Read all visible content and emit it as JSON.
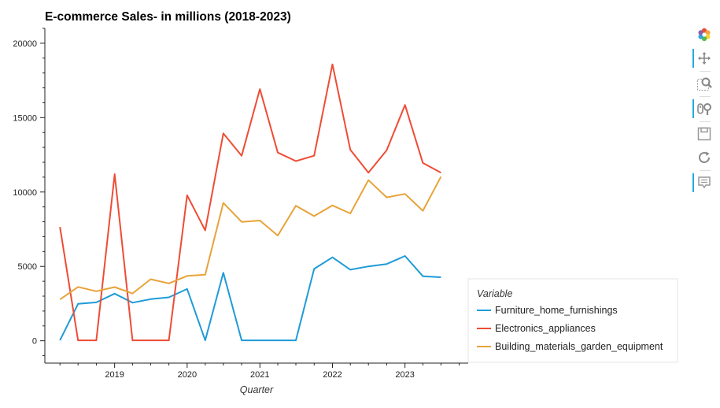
{
  "chart_data": {
    "type": "line",
    "title": "E-commerce Sales- in millions (2018-2023)",
    "xlabel": "Quarter",
    "ylabel": "",
    "x_ticks": [
      "2019",
      "2020",
      "2021",
      "2022",
      "2023"
    ],
    "y_ticks": [
      "0",
      "5000",
      "10000",
      "15000",
      "20000"
    ],
    "ylim": [
      -1500,
      21000
    ],
    "xlim": [
      "2018-01-15",
      "2023-11-15"
    ],
    "grid": false,
    "legend_title": "Variable",
    "legend_position": "right",
    "x": [
      "2018-04-01",
      "2018-07-01",
      "2018-10-01",
      "2019-01-01",
      "2019-04-01",
      "2019-07-01",
      "2019-10-01",
      "2020-01-01",
      "2020-04-01",
      "2020-07-01",
      "2020-10-01",
      "2021-01-01",
      "2021-04-01",
      "2021-07-01",
      "2021-10-01",
      "2022-01-01",
      "2022-04-01",
      "2022-07-01",
      "2022-10-01",
      "2023-01-01",
      "2023-04-01",
      "2023-07-01"
    ],
    "series": [
      {
        "name": "Furniture_home_furnishings",
        "color": "#1f9bd7",
        "values": [
          30,
          2480,
          2580,
          3170,
          2560,
          2800,
          2920,
          3480,
          30,
          4570,
          30,
          30,
          30,
          30,
          4830,
          5610,
          4780,
          5000,
          5160,
          5700,
          4340,
          4270
        ]
      },
      {
        "name": "Electronics_appliances",
        "color": "#ee4c35",
        "values": [
          7650,
          30,
          30,
          11200,
          30,
          30,
          30,
          9780,
          7420,
          13940,
          12440,
          16920,
          12650,
          12080,
          12440,
          18580,
          12840,
          11300,
          12810,
          15850,
          11950,
          11300
        ]
      },
      {
        "name": "Building_materials_garden_equipment",
        "color": "#e8a33a",
        "values": [
          2780,
          3620,
          3330,
          3610,
          3180,
          4140,
          3860,
          4360,
          4440,
          9270,
          7990,
          8080,
          7070,
          9080,
          8380,
          9100,
          8560,
          10800,
          9640,
          9870,
          8740,
          11030
        ]
      }
    ]
  },
  "toolbar": {
    "tools": [
      {
        "name": "bokeh-logo-icon",
        "active": false
      },
      {
        "name": "pan-tool-icon",
        "active": true
      },
      {
        "name": "box-zoom-tool-icon",
        "active": false
      },
      {
        "name": "wheel-zoom-tool-icon",
        "active": true
      },
      {
        "name": "save-tool-icon",
        "active": false
      },
      {
        "name": "reset-tool-icon",
        "active": false
      },
      {
        "name": "hover-tool-icon",
        "active": true
      }
    ]
  }
}
